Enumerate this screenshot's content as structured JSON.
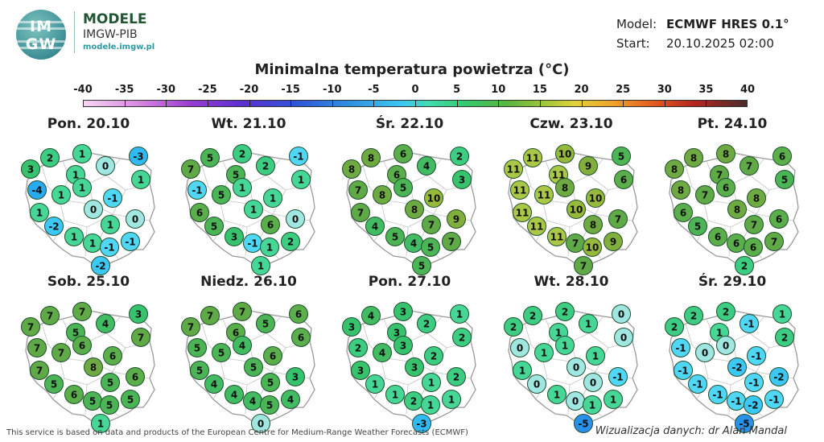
{
  "logo": {
    "line1": "IM",
    "line2": "GW"
  },
  "brand": {
    "name": "MODELE",
    "org": "IMGW-PIB",
    "url": "modele.imgw.pl"
  },
  "model": {
    "model_label": "Model:",
    "model_value": "ECMWF HRES 0.1°",
    "start_label": "Start:",
    "start_value": "20.10.2025 02:00"
  },
  "title": "Minimalna temperatura powietrza (°C)",
  "scale": {
    "ticks": [
      "-40",
      "-35",
      "-30",
      "-25",
      "-20",
      "-15",
      "-10",
      "-5",
      "0",
      "5",
      "10",
      "15",
      "20",
      "25",
      "30",
      "35",
      "40"
    ],
    "min": -40,
    "max": 40
  },
  "panels": [
    {
      "day": "Pon. 20.10",
      "values": [
        3,
        2,
        1,
        -3,
        1,
        0,
        1,
        -4,
        1,
        1,
        -1,
        1,
        0,
        0,
        -2,
        1,
        1,
        1,
        -1,
        -1,
        -2
      ]
    },
    {
      "day": "Wt. 21.10",
      "values": [
        7,
        5,
        2,
        -1,
        5,
        2,
        1,
        -1,
        5,
        1,
        1,
        6,
        1,
        0,
        5,
        6,
        3,
        -1,
        2,
        1,
        1
      ]
    },
    {
      "day": "Śr. 22.10",
      "values": [
        8,
        8,
        6,
        2,
        6,
        4,
        3,
        7,
        8,
        5,
        10,
        7,
        8,
        9,
        4,
        7,
        5,
        4,
        7,
        5,
        5
      ]
    },
    {
      "day": "Czw. 23.10",
      "values": [
        11,
        11,
        10,
        5,
        11,
        9,
        6,
        11,
        11,
        8,
        10,
        11,
        10,
        7,
        11,
        8,
        11,
        7,
        9,
        10,
        7
      ]
    },
    {
      "day": "Pt. 24.10",
      "values": [
        8,
        8,
        8,
        6,
        7,
        7,
        5,
        8,
        7,
        6,
        8,
        6,
        8,
        6,
        5,
        7,
        6,
        6,
        7,
        6,
        2
      ]
    },
    {
      "day": "Sob. 25.10",
      "values": [
        7,
        7,
        7,
        3,
        5,
        4,
        7,
        7,
        7,
        6,
        6,
        7,
        8,
        6,
        5,
        5,
        6,
        5,
        5,
        5,
        1
      ]
    },
    {
      "day": "Niedz. 26.10",
      "values": [
        7,
        7,
        7,
        6,
        6,
        5,
        6,
        5,
        5,
        4,
        6,
        5,
        5,
        3,
        4,
        5,
        4,
        4,
        4,
        5,
        0
      ]
    },
    {
      "day": "Pon. 27.10",
      "values": [
        3,
        4,
        3,
        1,
        3,
        2,
        2,
        2,
        4,
        3,
        2,
        3,
        3,
        2,
        1,
        1,
        1,
        2,
        1,
        1,
        -3
      ]
    },
    {
      "day": "Wt. 28.10",
      "values": [
        2,
        2,
        2,
        0,
        1,
        1,
        0,
        0,
        1,
        1,
        1,
        1,
        0,
        -1,
        0,
        0,
        1,
        0,
        1,
        1,
        -5
      ]
    },
    {
      "day": "Śr. 29.10",
      "values": [
        2,
        2,
        2,
        1,
        1,
        -1,
        2,
        -1,
        0,
        0,
        -1,
        -1,
        -2,
        -2,
        -1,
        -1,
        -1,
        -1,
        -1,
        -2,
        -5
      ]
    }
  ],
  "footer": "This service is based on data and products of the European Centre for Medium-Range Weather Forecasts (ECMWF)",
  "credit": "Wizualizacja danych: dr Alan Mandal"
}
